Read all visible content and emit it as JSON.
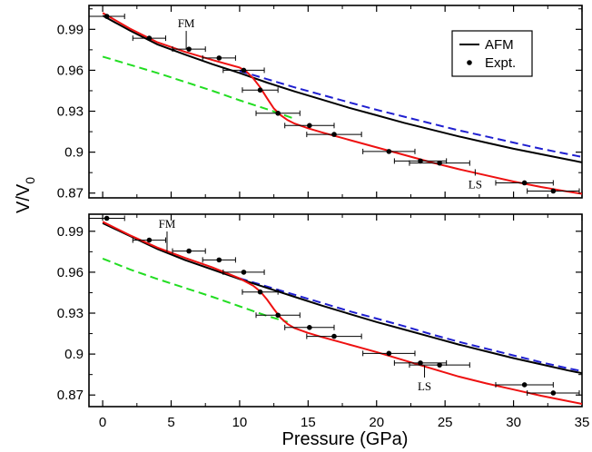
{
  "chart_data": {
    "type": "line",
    "xlabel": "Pressure (GPa)",
    "ylabel_main": "V/V",
    "ylabel_sub": "0",
    "xlim": [
      -1,
      35
    ],
    "ylim": [
      0.86,
      1.008
    ],
    "xticks": [
      0,
      5,
      10,
      15,
      20,
      25,
      30,
      35
    ],
    "xtick_labels": [
      "0",
      "5",
      "10",
      "15",
      "20",
      "25",
      "30",
      "35"
    ],
    "yticks": [
      0.87,
      0.9,
      0.93,
      0.96,
      0.99
    ],
    "ytick_labels": [
      "0.87",
      "0.9",
      "0.93",
      "0.96",
      "0.99"
    ],
    "legend": {
      "placement": "top-right",
      "entries": [
        {
          "label": "AFM",
          "kind": "line",
          "color": "#000000"
        },
        {
          "label": "Expt.",
          "kind": "marker",
          "color": "#000000"
        }
      ]
    },
    "colors": {
      "afm": "#000000",
      "blue_dashed": "#1f1fd0",
      "green_dashed": "#22dd22",
      "red": "#ee1111",
      "expt": "#000000"
    },
    "panels": [
      {
        "id": "top",
        "show_legend": true,
        "annotations": [
          {
            "text": "FM",
            "x": 6.1,
            "y": 0.9755,
            "label_y": 0.9915
          },
          {
            "text": "LS",
            "x": 27.2,
            "y": 0.8875,
            "label_y": 0.8735
          }
        ],
        "afm": {
          "x": [
            0,
            2,
            4,
            6,
            8,
            10,
            12,
            14,
            16,
            18,
            20,
            22,
            24,
            26,
            28,
            30,
            32,
            34,
            35
          ],
          "y": [
            1.0,
            0.989,
            0.979,
            0.9715,
            0.9645,
            0.958,
            0.951,
            0.9445,
            0.9385,
            0.9325,
            0.927,
            0.9215,
            0.9165,
            0.9115,
            0.907,
            0.9025,
            0.8985,
            0.8945,
            0.8925
          ]
        },
        "blue_dashed": {
          "x": [
            10,
            12,
            14,
            16,
            18,
            20,
            22,
            24,
            26,
            28,
            30,
            32,
            34,
            35
          ],
          "y": [
            0.9595,
            0.9535,
            0.9475,
            0.942,
            0.9365,
            0.931,
            0.926,
            0.921,
            0.916,
            0.9115,
            0.907,
            0.9025,
            0.8985,
            0.8965
          ]
        },
        "green_dashed": {
          "x": [
            0,
            2,
            4,
            6,
            8,
            10,
            12,
            14
          ],
          "y": [
            0.97,
            0.964,
            0.958,
            0.9515,
            0.945,
            0.938,
            0.9315,
            0.9245
          ]
        },
        "red": {
          "x": [
            0,
            2,
            4,
            6,
            8,
            10,
            10.5,
            11,
            11.5,
            12,
            12.5,
            13,
            13.5,
            14,
            15,
            16,
            18,
            20,
            22,
            24,
            26,
            28,
            30,
            32,
            34,
            35
          ],
          "y": [
            1.002,
            0.9905,
            0.9805,
            0.9735,
            0.9675,
            0.962,
            0.959,
            0.954,
            0.9475,
            0.9395,
            0.932,
            0.927,
            0.9235,
            0.921,
            0.9175,
            0.9145,
            0.909,
            0.9035,
            0.898,
            0.8925,
            0.8875,
            0.883,
            0.8785,
            0.8745,
            0.871,
            0.8695
          ]
        },
        "expt": [
          {
            "x": 0.3,
            "y": 0.9995,
            "xerr": 1.3
          },
          {
            "x": 3.4,
            "y": 0.9835,
            "xerr": 1.2
          },
          {
            "x": 6.3,
            "y": 0.9755,
            "xerr": 1.2
          },
          {
            "x": 8.5,
            "y": 0.969,
            "xerr": 1.2
          },
          {
            "x": 10.3,
            "y": 0.96,
            "xerr": 1.5
          },
          {
            "x": 11.5,
            "y": 0.9455,
            "xerr": 1.3
          },
          {
            "x": 12.8,
            "y": 0.9285,
            "xerr": 1.6
          },
          {
            "x": 15.1,
            "y": 0.9195,
            "xerr": 1.8
          },
          {
            "x": 16.9,
            "y": 0.913,
            "xerr": 2.0
          },
          {
            "x": 20.9,
            "y": 0.9005,
            "xerr": 1.9
          },
          {
            "x": 23.2,
            "y": 0.8935,
            "xerr": 1.9
          },
          {
            "x": 24.6,
            "y": 0.892,
            "xerr": 2.2
          },
          {
            "x": 30.8,
            "y": 0.8775,
            "xerr": 2.1
          },
          {
            "x": 32.9,
            "y": 0.8715,
            "xerr": 1.9
          }
        ]
      },
      {
        "id": "bottom",
        "show_legend": false,
        "annotations": [
          {
            "text": "FM",
            "x": 4.7,
            "y": 0.975,
            "label_y": 0.9925
          },
          {
            "text": "LS",
            "x": 23.5,
            "y": 0.8915,
            "label_y": 0.8735
          }
        ],
        "afm": {
          "x": [
            0,
            2,
            4,
            6,
            8,
            10,
            12,
            14,
            16,
            18,
            20,
            22,
            24,
            26,
            28,
            30,
            32,
            34,
            35
          ],
          "y": [
            0.996,
            0.9865,
            0.977,
            0.969,
            0.962,
            0.955,
            0.9485,
            0.942,
            0.9355,
            0.9295,
            0.9235,
            0.918,
            0.9125,
            0.907,
            0.902,
            0.897,
            0.8925,
            0.888,
            0.886
          ]
        },
        "blue_dashed": {
          "x": [
            10,
            12,
            14,
            16,
            18,
            20,
            22,
            24,
            26,
            28,
            30,
            32,
            34,
            35
          ],
          "y": [
            0.9555,
            0.9495,
            0.9435,
            0.9375,
            0.9315,
            0.926,
            0.9205,
            0.9145,
            0.909,
            0.904,
            0.899,
            0.894,
            0.8895,
            0.8875
          ]
        },
        "green_dashed": {
          "x": [
            0,
            2,
            4,
            6,
            8,
            10,
            12,
            13.5
          ],
          "y": [
            0.97,
            0.962,
            0.955,
            0.9485,
            0.942,
            0.935,
            0.928,
            0.9235
          ]
        },
        "red": {
          "x": [
            0,
            2,
            4,
            6,
            8,
            10,
            11,
            11.5,
            12,
            12.5,
            13,
            13.5,
            14,
            15,
            16,
            18,
            20,
            22,
            24,
            26,
            28,
            30,
            32,
            34,
            35
          ],
          "y": [
            0.997,
            0.987,
            0.978,
            0.9705,
            0.9635,
            0.9555,
            0.95,
            0.946,
            0.94,
            0.933,
            0.9265,
            0.922,
            0.919,
            0.9155,
            0.9125,
            0.907,
            0.9015,
            0.8955,
            0.8895,
            0.8835,
            0.8785,
            0.874,
            0.8695,
            0.8655,
            0.8635
          ]
        },
        "expt": [
          {
            "x": 0.3,
            "y": 0.9995,
            "xerr": 1.3
          },
          {
            "x": 3.4,
            "y": 0.9835,
            "xerr": 1.2
          },
          {
            "x": 6.3,
            "y": 0.9755,
            "xerr": 1.2
          },
          {
            "x": 8.5,
            "y": 0.969,
            "xerr": 1.2
          },
          {
            "x": 10.3,
            "y": 0.96,
            "xerr": 1.5
          },
          {
            "x": 11.5,
            "y": 0.9455,
            "xerr": 1.3
          },
          {
            "x": 12.8,
            "y": 0.9285,
            "xerr": 1.6
          },
          {
            "x": 15.1,
            "y": 0.9195,
            "xerr": 1.8
          },
          {
            "x": 16.9,
            "y": 0.913,
            "xerr": 2.0
          },
          {
            "x": 20.9,
            "y": 0.9005,
            "xerr": 1.9
          },
          {
            "x": 23.2,
            "y": 0.8935,
            "xerr": 1.9
          },
          {
            "x": 24.6,
            "y": 0.892,
            "xerr": 2.2
          },
          {
            "x": 30.8,
            "y": 0.8775,
            "xerr": 2.1
          },
          {
            "x": 32.9,
            "y": 0.8715,
            "xerr": 1.9
          }
        ]
      }
    ]
  }
}
